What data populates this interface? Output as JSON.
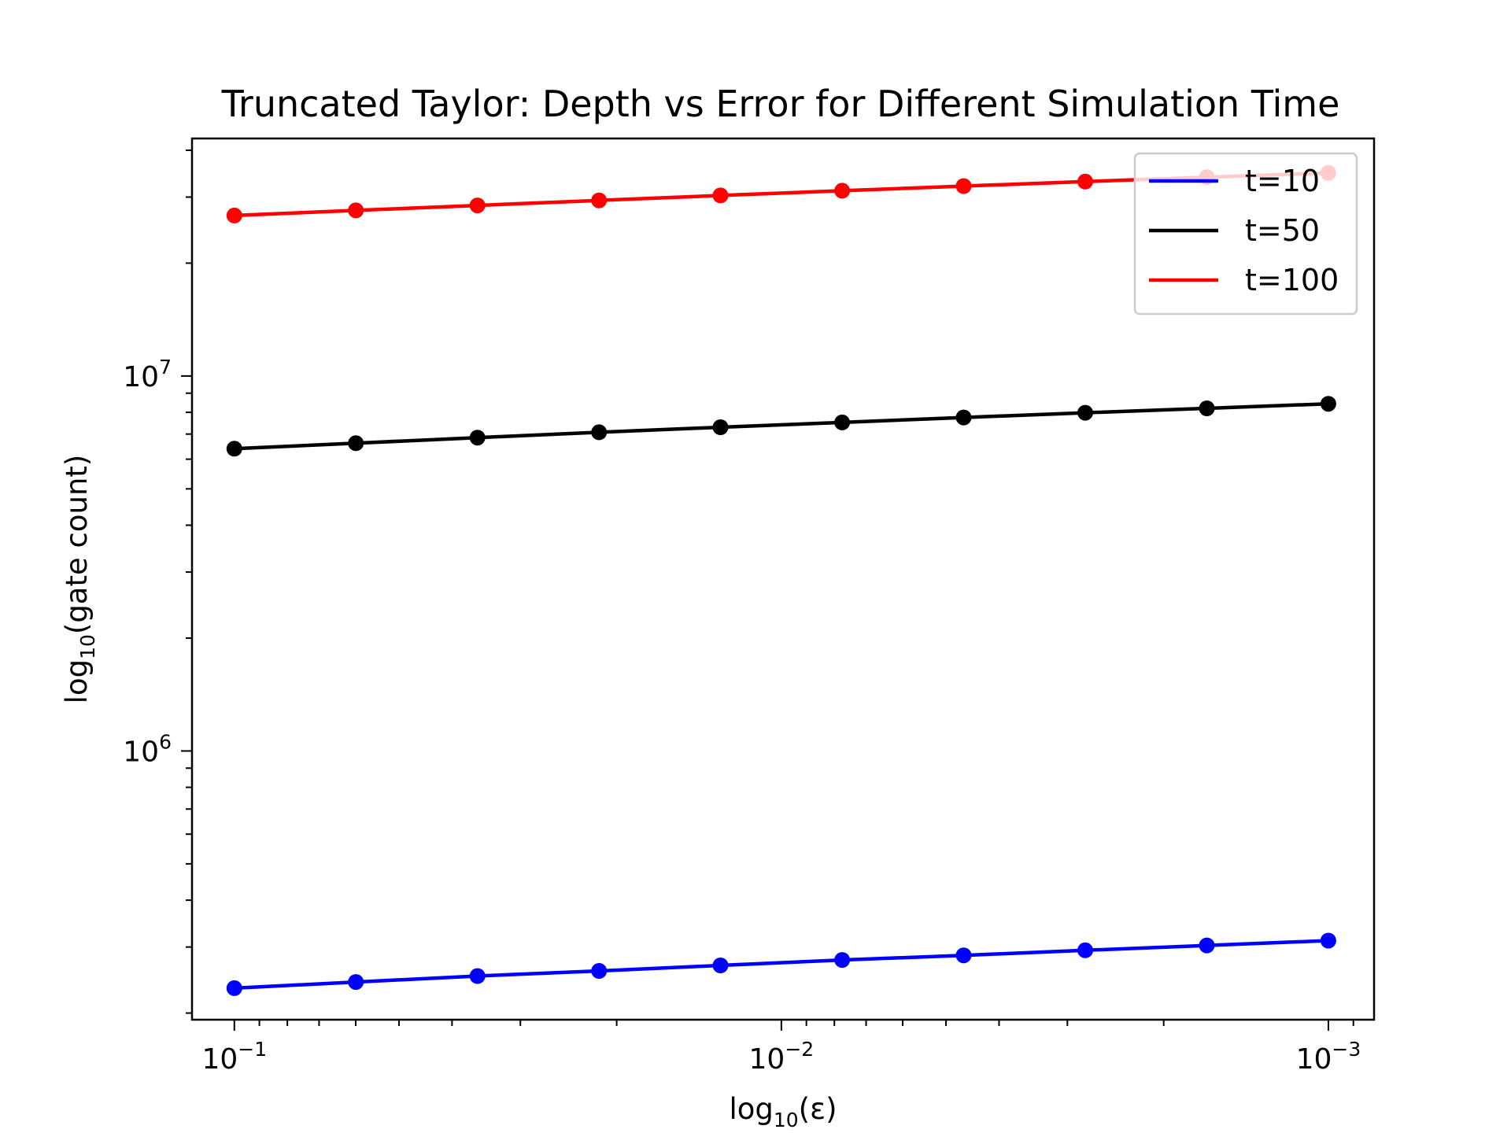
{
  "chart_data": {
    "type": "line",
    "title": "Truncated Taylor: Depth vs Error for Different Simulation Time",
    "xlabel": {
      "base": "log",
      "sub": "10",
      "rest": "(ε)"
    },
    "ylabel": {
      "base": "log",
      "sub": "10",
      "rest": "(gate count)"
    },
    "x_scale": "log",
    "y_scale": "log",
    "x_inverted": true,
    "xlim": [
      0.1195,
      0.000825
    ],
    "ylim": [
      192000,
      43000000
    ],
    "x_ticks": [
      {
        "value": 0.1,
        "base": "10",
        "exp": "−1"
      },
      {
        "value": 0.01,
        "base": "10",
        "exp": "−2"
      },
      {
        "value": 0.001,
        "base": "10",
        "exp": "−3"
      }
    ],
    "y_ticks": [
      {
        "value": 1000000,
        "base": "10",
        "exp": "6"
      },
      {
        "value": 10000000,
        "base": "10",
        "exp": "7"
      }
    ],
    "grid": false,
    "legend_position": "top-right",
    "x": [
      0.1,
      0.05995,
      0.03594,
      0.02154,
      0.01292,
      0.007743,
      0.004642,
      0.002783,
      0.001668,
      0.001
    ],
    "series": [
      {
        "name": "t=10",
        "color": "#0000ff",
        "values": [
          233000,
          242000,
          251000,
          259000,
          268000,
          277000,
          285000,
          294000,
          303000,
          312000
        ]
      },
      {
        "name": "t=50",
        "color": "#000000",
        "values": [
          6400000,
          6620000,
          6850000,
          7080000,
          7300000,
          7520000,
          7750000,
          7980000,
          8200000,
          8430000
        ]
      },
      {
        "name": "t=100",
        "color": "#ff0000",
        "values": [
          26800000,
          27650000,
          28500000,
          29400000,
          30300000,
          31200000,
          32100000,
          33000000,
          33900000,
          34800000
        ]
      }
    ]
  }
}
